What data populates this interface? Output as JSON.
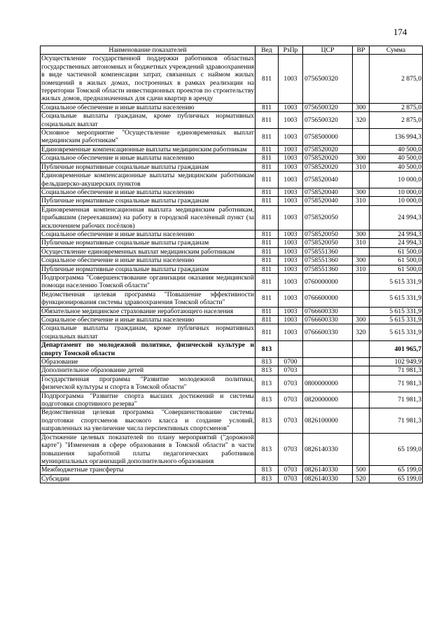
{
  "page_number": "174",
  "table": {
    "headers": [
      "Наименование показателей",
      "Вед",
      "РзПр",
      "ЦСР",
      "ВР",
      "Сумма"
    ],
    "rows": [
      {
        "name": "Осуществление государственной поддержки работников областных государственных автономных и бюджетных учреждений здравоохранения в виде частичной компенсации затрат, связанных с наймом жилых помещений в жилых домах, построенных в рамках реализации на территории Томской области инвестиционных проектов по строительству жилых домов, предназначенных для сдачи квартир в аренду",
        "ved": "811",
        "rzpr": "1003",
        "csr": "0756500320",
        "vr": "",
        "sum": "2 875,0"
      },
      {
        "name": "Социальное обеспечение и иные выплаты населению",
        "ved": "811",
        "rzpr": "1003",
        "csr": "0756500320",
        "vr": "300",
        "sum": "2 875,0"
      },
      {
        "name": "Социальные выплаты гражданам, кроме публичных нормативных социальных выплат",
        "ved": "811",
        "rzpr": "1003",
        "csr": "0756500320",
        "vr": "320",
        "sum": "2 875,0"
      },
      {
        "name": "Основное мероприятие \"Осуществление единовременных выплат медицинским работникам\"",
        "ved": "811",
        "rzpr": "1003",
        "csr": "0758500000",
        "vr": "",
        "sum": "136 994,3"
      },
      {
        "name": "Единовременные компенсационные выплаты медицинским работникам",
        "ved": "811",
        "rzpr": "1003",
        "csr": "0758520020",
        "vr": "",
        "sum": "40 500,0"
      },
      {
        "name": "Социальное обеспечение и иные выплаты населению",
        "ved": "811",
        "rzpr": "1003",
        "csr": "0758520020",
        "vr": "300",
        "sum": "40 500,0"
      },
      {
        "name": "Публичные нормативные социальные выплаты гражданам",
        "ved": "811",
        "rzpr": "1003",
        "csr": "0758520020",
        "vr": "310",
        "sum": "40 500,0"
      },
      {
        "name": "Единовременные компенсационные выплаты медицинским работникам фельдшерско-акушерских пунктов",
        "ved": "811",
        "rzpr": "1003",
        "csr": "0758520040",
        "vr": "",
        "sum": "10 000,0"
      },
      {
        "name": "Социальное обеспечение и иные выплаты населению",
        "ved": "811",
        "rzpr": "1003",
        "csr": "0758520040",
        "vr": "300",
        "sum": "10 000,0"
      },
      {
        "name": "Публичные нормативные социальные выплаты гражданам",
        "ved": "811",
        "rzpr": "1003",
        "csr": "0758520040",
        "vr": "310",
        "sum": "10 000,0"
      },
      {
        "name": "Единовременная компенсационная выплата медицинским работникам, прибывшим (переехавшим) на работу в городской населённый пункт (за исключением рабочих посёлков)",
        "ved": "811",
        "rzpr": "1003",
        "csr": "0758520050",
        "vr": "",
        "sum": "24 994,3"
      },
      {
        "name": "Социальное обеспечение и иные выплаты населению",
        "ved": "811",
        "rzpr": "1003",
        "csr": "0758520050",
        "vr": "300",
        "sum": "24 994,3"
      },
      {
        "name": "Публичные нормативные социальные выплаты гражданам",
        "ved": "811",
        "rzpr": "1003",
        "csr": "0758520050",
        "vr": "310",
        "sum": "24 994,3"
      },
      {
        "name": "Осуществление единовременных выплат медицинским работникам",
        "ved": "811",
        "rzpr": "1003",
        "csr": "0758551360",
        "vr": "",
        "sum": "61 500,0"
      },
      {
        "name": "Социальное обеспечение и иные выплаты населению",
        "ved": "811",
        "rzpr": "1003",
        "csr": "0758551360",
        "vr": "300",
        "sum": "61 500,0"
      },
      {
        "name": "Публичные нормативные социальные выплаты гражданам",
        "ved": "811",
        "rzpr": "1003",
        "csr": "0758551360",
        "vr": "310",
        "sum": "61 500,0"
      },
      {
        "name": "Подпрограмма \"Совершенствование организации оказания медицинской помощи населению Томской области\"",
        "ved": "811",
        "rzpr": "1003",
        "csr": "0760000000",
        "vr": "",
        "sum": "5 615 331,9"
      },
      {
        "name": "Ведомственная целевая программа \"Повышение эффективности функционирования системы здравоохранения Томской области\"",
        "ved": "811",
        "rzpr": "1003",
        "csr": "0766600000",
        "vr": "",
        "sum": "5 615 331,9"
      },
      {
        "name": "Обязательное медицинское страхование неработающего населения",
        "ved": "811",
        "rzpr": "1003",
        "csr": "0766600330",
        "vr": "",
        "sum": "5 615 331,9"
      },
      {
        "name": "Социальное обеспечение и иные выплаты населению",
        "ved": "811",
        "rzpr": "1003",
        "csr": "0766600330",
        "vr": "300",
        "sum": "5 615 331,9"
      },
      {
        "name": "Социальные выплаты гражданам, кроме публичных нормативных социальных выплат",
        "ved": "811",
        "rzpr": "1003",
        "csr": "0766600330",
        "vr": "320",
        "sum": "5 615 331,9"
      },
      {
        "name": "Департамент по молодежной политике, физической культуре и спорту Томской области",
        "ved": "813",
        "rzpr": "",
        "csr": "",
        "vr": "",
        "sum": "401 965,7",
        "bold": true
      },
      {
        "name": "Образование",
        "ved": "813",
        "rzpr": "0700",
        "csr": "",
        "vr": "",
        "sum": "102 949,9"
      },
      {
        "name": "Дополнительное образование детей",
        "ved": "813",
        "rzpr": "0703",
        "csr": "",
        "vr": "",
        "sum": "71 981,3"
      },
      {
        "name": "Государственная программа \"Развитие молодежной политики, физической культуры и спорта в Томской области\"",
        "ved": "813",
        "rzpr": "0703",
        "csr": "0800000000",
        "vr": "",
        "sum": "71 981,3"
      },
      {
        "name": "Подпрограмма \"Развитие спорта высших достижений и системы подготовки спортивного резерва\"",
        "ved": "813",
        "rzpr": "0703",
        "csr": "0820000000",
        "vr": "",
        "sum": "71 981,3"
      },
      {
        "name": "Ведомственная целевая программа \"Совершенствование системы подготовки спортсменов высокого класса и создание условий, направленных на увеличение числа перспективных спортсменов\"",
        "ved": "813",
        "rzpr": "0703",
        "csr": "0826100000",
        "vr": "",
        "sum": "71 981,3"
      },
      {
        "name": "Достижение целевых показателей по плану мероприятий (\"дорожной карте\") \"Изменения в сфере образования в Томской области\" в части повышения заработной платы педагогических работников муниципальных организаций дополнительного образования",
        "ved": "813",
        "rzpr": "0703",
        "csr": "0826140330",
        "vr": "",
        "sum": "65 199,0"
      },
      {
        "name": "Межбюджетные трансферты",
        "ved": "813",
        "rzpr": "0703",
        "csr": "0826140330",
        "vr": "500",
        "sum": "65 199,0"
      },
      {
        "name": "Субсидии",
        "ved": "813",
        "rzpr": "0703",
        "csr": "0826140330",
        "vr": "520",
        "sum": "65 199,0"
      }
    ]
  }
}
